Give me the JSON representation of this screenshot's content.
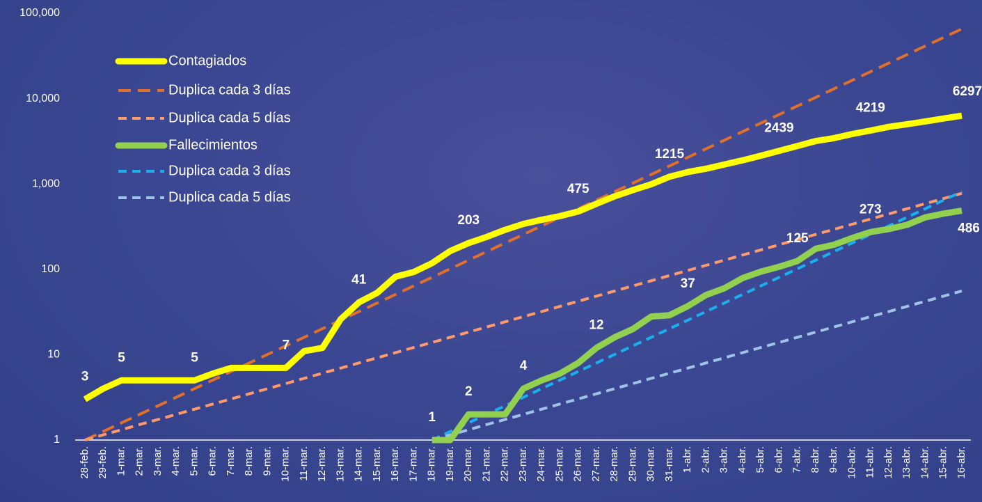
{
  "chart_data": {
    "type": "line",
    "log_scale": true,
    "grid": false,
    "legend": "upper left",
    "categories": [
      "28-feb.",
      "29-feb.",
      "1-mar.",
      "2-mar.",
      "3-mar.",
      "4-mar.",
      "5-mar.",
      "6-mar.",
      "7-mar.",
      "8-mar.",
      "9-mar.",
      "10-mar.",
      "11-mar.",
      "12-mar.",
      "13-mar.",
      "14-mar.",
      "15-mar.",
      "16-mar.",
      "17-mar.",
      "18-mar.",
      "19-mar.",
      "20-mar.",
      "21-mar.",
      "22-mar.",
      "23-mar.",
      "24-mar.",
      "25-mar.",
      "26-mar.",
      "27-mar.",
      "28-mar.",
      "29-mar.",
      "30-mar.",
      "31-mar.",
      "1-abr.",
      "2-abr.",
      "3-abr.",
      "4-abr.",
      "5-abr.",
      "6-abr.",
      "7-abr.",
      "8-abr.",
      "9-abr.",
      "10-abr.",
      "11-abr.",
      "12-abr.",
      "13-abr.",
      "14-abr.",
      "15-abr.",
      "16-abr."
    ],
    "ylim": [
      1,
      100000
    ],
    "yticks": [
      1,
      10,
      100,
      {
        "value": 1000,
        "label": "1,000"
      },
      {
        "value": 10000,
        "label": "10,000"
      },
      {
        "value": 100000,
        "label": "100,000"
      }
    ],
    "series": [
      {
        "name": "Contagiados",
        "color": "#ffff00",
        "width": 9,
        "dash": null,
        "values": [
          3,
          4,
          5,
          5,
          5,
          5,
          5,
          6,
          7,
          7,
          7,
          7,
          11,
          12,
          26,
          41,
          53,
          82,
          93,
          118,
          164,
          203,
          240,
          290,
          340,
          380,
          420,
          475,
          585,
          717,
          848,
          993,
          1215,
          1378,
          1510,
          1688,
          1890,
          2143,
          2439,
          2785,
          3181,
          3441,
          3844,
          4219,
          4661,
          5014,
          5399,
          5847,
          6297
        ],
        "value_labels": [
          "3",
          null,
          "5",
          null,
          null,
          null,
          "5",
          null,
          null,
          null,
          null,
          "7",
          null,
          null,
          null,
          "41",
          null,
          null,
          null,
          null,
          null,
          "203",
          null,
          null,
          null,
          null,
          null,
          "475",
          null,
          null,
          null,
          null,
          "1215",
          null,
          null,
          null,
          null,
          null,
          "2439",
          null,
          null,
          null,
          null,
          "4219",
          null,
          null,
          null,
          null,
          "6297"
        ]
      },
      {
        "name": "Duplica cada 3 días",
        "color": "#e0702a",
        "width": 4,
        "dash": "18 10",
        "values": [
          1,
          1.26,
          1.59,
          2,
          2.52,
          3.17,
          4,
          5.04,
          6.35,
          8,
          10.08,
          12.7,
          16,
          20.16,
          25.4,
          32,
          40.3,
          50.8,
          64,
          80.6,
          101.6,
          128,
          161.3,
          203.2,
          256,
          322.5,
          406.4,
          512,
          645.1,
          812.7,
          1024,
          1290,
          1625,
          2048,
          2580,
          3251,
          4096,
          5161,
          6502,
          8192,
          10321,
          13004,
          16384,
          20643,
          26008,
          32768,
          41285,
          52016,
          65536
        ]
      },
      {
        "name": "Duplica cada 5 días",
        "color": "#ff9a6a",
        "width": 4,
        "dash": "12 8",
        "values": [
          1,
          1.15,
          1.32,
          1.52,
          1.74,
          2,
          2.3,
          2.64,
          3.03,
          3.48,
          4,
          4.59,
          5.28,
          6.06,
          6.96,
          8,
          9.19,
          10.56,
          12.13,
          13.93,
          16,
          18.38,
          21.11,
          24.25,
          27.86,
          32,
          36.76,
          42.22,
          48.5,
          55.72,
          64,
          73.5,
          84.4,
          97,
          111.4,
          128,
          147,
          168.9,
          194,
          222.9,
          256,
          294,
          337.8,
          388,
          445.7,
          512,
          588.1,
          675.6,
          776
        ]
      },
      {
        "name": "Fallecimientos",
        "color": "#92d050",
        "width": 9,
        "dash": null,
        "values": [
          null,
          null,
          null,
          null,
          null,
          null,
          null,
          null,
          null,
          null,
          null,
          null,
          null,
          null,
          null,
          null,
          null,
          null,
          null,
          1,
          1,
          2,
          2,
          2,
          4,
          5,
          6,
          8,
          12,
          16,
          20,
          28,
          29,
          37,
          50,
          60,
          79,
          94,
          107,
          125,
          174,
          194,
          233,
          273,
          296,
          332,
          406,
          449,
          486
        ],
        "value_labels": [
          null,
          null,
          null,
          null,
          null,
          null,
          null,
          null,
          null,
          null,
          null,
          null,
          null,
          null,
          null,
          null,
          null,
          null,
          null,
          "1",
          null,
          "2",
          null,
          null,
          "4",
          null,
          null,
          null,
          "12",
          null,
          null,
          null,
          null,
          "37",
          null,
          null,
          null,
          null,
          null,
          "125",
          null,
          null,
          null,
          "273",
          null,
          null,
          null,
          null,
          "486"
        ]
      },
      {
        "name": "Duplica cada 3 días",
        "color": "#1ab0f0",
        "width": 4,
        "dash": "12 8",
        "values": [
          null,
          null,
          null,
          null,
          null,
          null,
          null,
          null,
          null,
          null,
          null,
          null,
          null,
          null,
          null,
          null,
          null,
          null,
          null,
          1,
          1.26,
          1.59,
          2,
          2.52,
          3.17,
          4,
          5.04,
          6.35,
          8,
          10.08,
          12.7,
          16,
          20.16,
          25.4,
          32,
          40.3,
          50.8,
          64,
          80.6,
          101.6,
          128,
          161.3,
          203.2,
          256,
          322.5,
          406.4,
          512,
          645.1,
          812.7
        ]
      },
      {
        "name": "Duplica cada 5 días",
        "color": "#9dc3e6",
        "width": 4,
        "dash": "12 8",
        "values": [
          null,
          null,
          null,
          null,
          null,
          null,
          null,
          null,
          null,
          null,
          null,
          null,
          null,
          null,
          null,
          null,
          null,
          null,
          null,
          1,
          1.15,
          1.32,
          1.52,
          1.74,
          2,
          2.3,
          2.64,
          3.03,
          3.48,
          4,
          4.59,
          5.28,
          6.06,
          6.96,
          8,
          9.19,
          10.56,
          12.13,
          13.93,
          16,
          18.38,
          21.11,
          24.25,
          27.86,
          32,
          36.76,
          42.22,
          48.5,
          55.72
        ]
      }
    ]
  }
}
